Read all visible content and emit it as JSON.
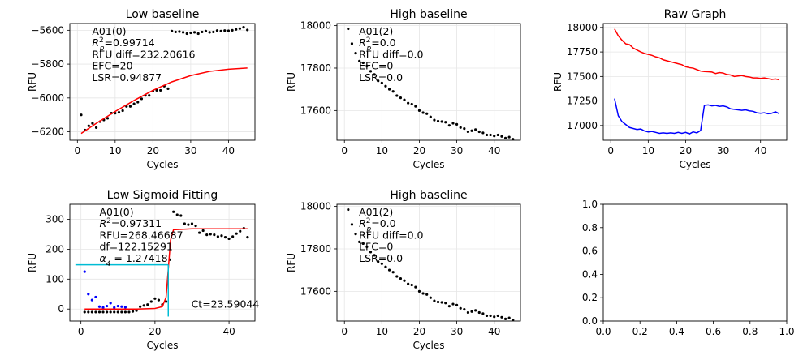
{
  "chart_data": [
    {
      "type": "scatter",
      "title": "Low baseline",
      "xlabel": "Cycles",
      "ylabel": "RFU",
      "xlim": [
        -2,
        47
      ],
      "ylim": [
        -6250,
        -5560
      ],
      "xticks": [
        0,
        10,
        20,
        30,
        40
      ],
      "yticks": [
        -6200,
        -6000,
        -5800,
        -5600
      ],
      "ytick_labels": [
        "−6200",
        "−6000",
        "−5800",
        "−5600"
      ],
      "grid": true,
      "annotation": [
        "A01(0)",
        "R_p^2=0.99714",
        "RFU diff=232.20616",
        "EFC=20",
        "LSR=0.94877"
      ],
      "series": [
        {
          "kind": "points",
          "color": "#000000",
          "x": [
            1,
            2,
            3,
            4,
            5,
            6,
            7,
            8,
            9,
            10,
            11,
            12,
            13,
            14,
            15,
            16,
            17,
            18,
            19,
            20,
            21,
            22,
            23,
            24,
            25,
            26,
            27,
            28,
            29,
            30,
            31,
            32,
            33,
            34,
            35,
            36,
            37,
            38,
            39,
            40,
            41,
            42,
            43,
            44,
            45
          ],
          "y": [
            -6100,
            -6190,
            -6165,
            -6150,
            -6175,
            -6140,
            -6130,
            -6120,
            -6090,
            -6090,
            -6085,
            -6075,
            -6050,
            -6050,
            -6035,
            -6025,
            -6005,
            -5985,
            -5985,
            -5960,
            -5955,
            -5955,
            -5930,
            -5945,
            -5605,
            -5610,
            -5608,
            -5612,
            -5620,
            -5615,
            -5612,
            -5620,
            -5610,
            -5605,
            -5612,
            -5610,
            -5602,
            -5605,
            -5602,
            -5603,
            -5600,
            -5595,
            -5590,
            -5582,
            -5598
          ]
        },
        {
          "kind": "line",
          "color": "#ff0000",
          "x": [
            1,
            5,
            10,
            15,
            20,
            25,
            30,
            35,
            40,
            45
          ],
          "y": [
            -6210,
            -6150,
            -6080,
            -6015,
            -5955,
            -5905,
            -5868,
            -5843,
            -5830,
            -5823
          ]
        }
      ]
    },
    {
      "type": "scatter",
      "title": "High baseline",
      "xlabel": "Cycles",
      "ylabel": "RFU",
      "xlim": [
        -2,
        47
      ],
      "ylim": [
        17460,
        18010
      ],
      "xticks": [
        0,
        10,
        20,
        30,
        40
      ],
      "yticks": [
        17600,
        17800,
        18000
      ],
      "ytick_labels": [
        "17600",
        "17800",
        "18000"
      ],
      "grid": true,
      "annotation": [
        "A01(2)",
        "R_p^2=0.0",
        "RFU diff=0.0",
        "EFC=0",
        "LSR=0.0"
      ],
      "series": [
        {
          "kind": "points",
          "color": "#000000",
          "x": [
            1,
            2,
            3,
            4,
            5,
            6,
            7,
            8,
            9,
            10,
            11,
            12,
            13,
            14,
            15,
            16,
            17,
            18,
            19,
            20,
            21,
            22,
            23,
            24,
            25,
            26,
            27,
            28,
            29,
            30,
            31,
            32,
            33,
            34,
            35,
            36,
            37,
            38,
            39,
            40,
            41,
            42,
            43,
            44,
            45
          ],
          "y": [
            17985,
            17915,
            17870,
            17833,
            17825,
            17810,
            17785,
            17770,
            17740,
            17730,
            17715,
            17700,
            17690,
            17670,
            17660,
            17650,
            17635,
            17630,
            17620,
            17600,
            17590,
            17585,
            17570,
            17555,
            17550,
            17548,
            17545,
            17530,
            17540,
            17535,
            17520,
            17515,
            17500,
            17505,
            17510,
            17500,
            17495,
            17485,
            17485,
            17480,
            17485,
            17478,
            17470,
            17475,
            17465
          ]
        }
      ]
    },
    {
      "type": "line",
      "title": "Raw Graph",
      "xlabel": "Cycles",
      "ylabel": "RFU",
      "xlim": [
        -2,
        47
      ],
      "ylim": [
        16850,
        18040
      ],
      "xticks": [
        0,
        10,
        20,
        30,
        40
      ],
      "yticks": [
        17000,
        17250,
        17500,
        17750,
        18000
      ],
      "ytick_labels": [
        "17000",
        "17250",
        "17500",
        "17750",
        "18000"
      ],
      "grid": true,
      "series": [
        {
          "kind": "line",
          "color": "#ff0000",
          "x": [
            1,
            2,
            3,
            4,
            5,
            6,
            7,
            8,
            9,
            10,
            11,
            12,
            13,
            14,
            15,
            16,
            17,
            18,
            19,
            20,
            21,
            22,
            23,
            24,
            25,
            26,
            27,
            28,
            29,
            30,
            31,
            32,
            33,
            34,
            35,
            36,
            37,
            38,
            39,
            40,
            41,
            42,
            43,
            44,
            45
          ],
          "y": [
            17985,
            17915,
            17870,
            17833,
            17825,
            17790,
            17770,
            17750,
            17735,
            17725,
            17715,
            17700,
            17690,
            17670,
            17660,
            17650,
            17640,
            17630,
            17620,
            17600,
            17590,
            17585,
            17570,
            17555,
            17550,
            17548,
            17545,
            17530,
            17540,
            17535,
            17520,
            17515,
            17500,
            17505,
            17510,
            17500,
            17495,
            17485,
            17485,
            17480,
            17485,
            17478,
            17470,
            17475,
            17465
          ]
        },
        {
          "kind": "line",
          "color": "#0000ff",
          "x": [
            1,
            2,
            3,
            4,
            5,
            6,
            7,
            8,
            9,
            10,
            11,
            12,
            13,
            14,
            15,
            16,
            17,
            18,
            19,
            20,
            21,
            22,
            23,
            24,
            25,
            26,
            27,
            28,
            29,
            30,
            31,
            32,
            33,
            34,
            35,
            36,
            37,
            38,
            39,
            40,
            41,
            42,
            43,
            44,
            45
          ],
          "y": [
            17275,
            17100,
            17040,
            17010,
            16980,
            16970,
            16960,
            16965,
            16945,
            16935,
            16940,
            16930,
            16920,
            16925,
            16920,
            16925,
            16920,
            16930,
            16920,
            16930,
            16915,
            16935,
            16925,
            16950,
            17205,
            17210,
            17200,
            17205,
            17195,
            17200,
            17190,
            17170,
            17165,
            17160,
            17155,
            17160,
            17150,
            17145,
            17130,
            17125,
            17130,
            17120,
            17125,
            17140,
            17120
          ]
        }
      ]
    },
    {
      "type": "scatter",
      "title": "Low Sigmoid Fitting",
      "xlabel": "Cycles",
      "ylabel": "RFU",
      "xlim": [
        -3,
        47
      ],
      "ylim": [
        -40,
        350
      ],
      "xticks": [
        0,
        20,
        40
      ],
      "yticks": [
        0,
        100,
        200,
        300
      ],
      "ytick_labels": [
        "0",
        "100",
        "200",
        "300"
      ],
      "grid": true,
      "annotation": [
        "A01(0)",
        "R^2=0.97311",
        "RFU=268.46687",
        "df=122.15291",
        "α_4 = 1.27418"
      ],
      "ct_label": "Ct=23.59044",
      "series": [
        {
          "kind": "points",
          "color": "#000000",
          "x": [
            1,
            2,
            3,
            4,
            5,
            6,
            7,
            8,
            9,
            10,
            11,
            12,
            13,
            14,
            15,
            16,
            17,
            18,
            19,
            20,
            21,
            22,
            23,
            24,
            25,
            26,
            27,
            28,
            29,
            30,
            31,
            32,
            33,
            34,
            35,
            36,
            37,
            38,
            39,
            40,
            41,
            42,
            43,
            44,
            45
          ],
          "y": [
            -10,
            -10,
            -10,
            -10,
            -10,
            -10,
            -10,
            -10,
            -10,
            -10,
            -10,
            -10,
            -10,
            -8,
            -5,
            8,
            12,
            15,
            25,
            35,
            30,
            15,
            25,
            165,
            325,
            315,
            312,
            285,
            282,
            285,
            278,
            255,
            262,
            248,
            250,
            248,
            242,
            245,
            240,
            235,
            242,
            252,
            260,
            270,
            240
          ]
        },
        {
          "kind": "points",
          "color": "#0000ff",
          "x": [
            1,
            2,
            3,
            4,
            5,
            6,
            7,
            8,
            9,
            10,
            11,
            12
          ],
          "y": [
            125,
            50,
            30,
            40,
            8,
            5,
            10,
            20,
            5,
            10,
            8,
            6
          ]
        },
        {
          "kind": "line",
          "color": "#ff0000",
          "x": [
            1,
            5,
            10,
            15,
            20,
            22,
            23,
            23.6,
            24.2,
            25,
            30,
            35,
            40,
            45
          ],
          "y": [
            0,
            0,
            0,
            0,
            2,
            8,
            40,
            135,
            230,
            265,
            268,
            268,
            268,
            268
          ]
        },
        {
          "kind": "line",
          "color": "#00bcd4",
          "x": [
            -1.5,
            23.59
          ],
          "y": [
            148,
            148
          ]
        },
        {
          "kind": "line",
          "color": "#00bcd4",
          "x": [
            23.59,
            23.59
          ],
          "y": [
            148,
            -25
          ]
        }
      ]
    },
    {
      "type": "scatter",
      "title": "High baseline",
      "xlabel": "Cycles",
      "ylabel": "RFU",
      "xlim": [
        -2,
        47
      ],
      "ylim": [
        17460,
        18010
      ],
      "xticks": [
        0,
        10,
        20,
        30,
        40
      ],
      "yticks": [
        17600,
        17800,
        18000
      ],
      "ytick_labels": [
        "17600",
        "17800",
        "18000"
      ],
      "grid": true,
      "annotation": [
        "A01(2)",
        "R_p^2=0.0",
        "RFU diff=0.0",
        "EFC=0",
        "LSR=0.0"
      ],
      "series": [
        {
          "kind": "points",
          "color": "#000000",
          "x": [
            1,
            2,
            3,
            4,
            5,
            6,
            7,
            8,
            9,
            10,
            11,
            12,
            13,
            14,
            15,
            16,
            17,
            18,
            19,
            20,
            21,
            22,
            23,
            24,
            25,
            26,
            27,
            28,
            29,
            30,
            31,
            32,
            33,
            34,
            35,
            36,
            37,
            38,
            39,
            40,
            41,
            42,
            43,
            44,
            45
          ],
          "y": [
            17985,
            17915,
            17870,
            17833,
            17825,
            17810,
            17785,
            17770,
            17740,
            17730,
            17715,
            17700,
            17690,
            17670,
            17660,
            17650,
            17635,
            17630,
            17620,
            17600,
            17590,
            17585,
            17570,
            17555,
            17550,
            17548,
            17545,
            17530,
            17540,
            17535,
            17520,
            17515,
            17500,
            17505,
            17510,
            17500,
            17495,
            17485,
            17485,
            17480,
            17485,
            17478,
            17470,
            17475,
            17465
          ]
        }
      ]
    },
    {
      "type": "line",
      "title": "",
      "xlabel": "",
      "ylabel": "",
      "xlim": [
        0,
        1
      ],
      "ylim": [
        0,
        1
      ],
      "xticks": [
        0,
        0.2,
        0.4,
        0.6,
        0.8,
        1
      ],
      "xtick_labels": [
        "0.0",
        "0.2",
        "0.4",
        "0.6",
        "0.8",
        "1.0"
      ],
      "yticks": [
        0,
        0.2,
        0.4,
        0.6,
        0.8,
        1
      ],
      "ytick_labels": [
        "0.0",
        "0.2",
        "0.4",
        "0.6",
        "0.8",
        "1.0"
      ],
      "grid": false,
      "series": []
    }
  ]
}
